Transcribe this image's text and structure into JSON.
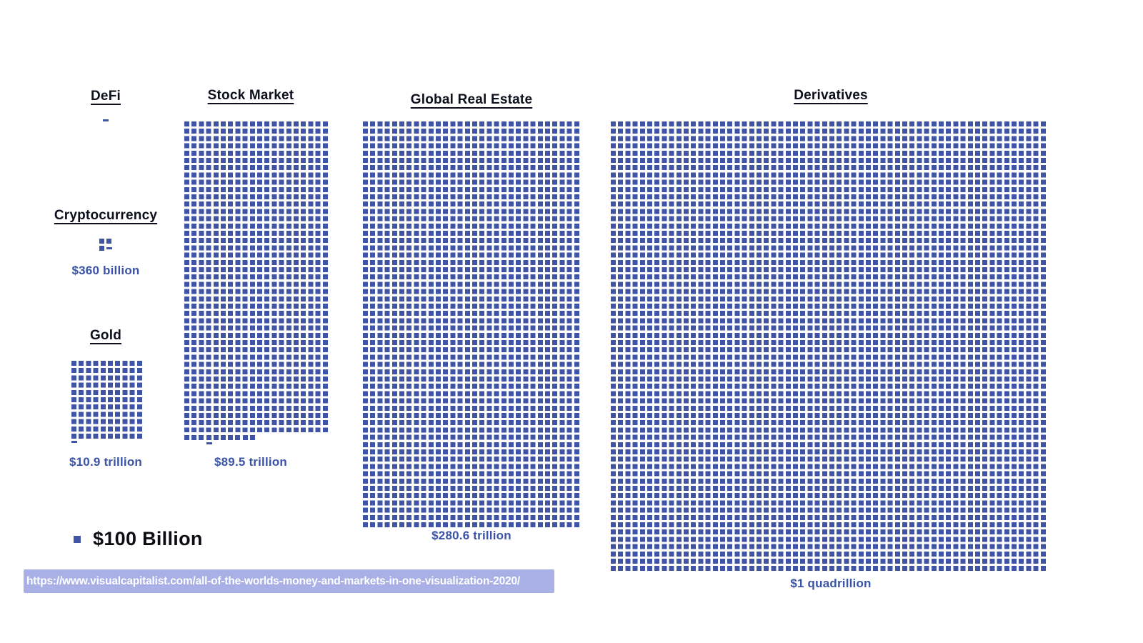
{
  "legend": {
    "label": "$100 Billion",
    "swatch_color": "#4054a6"
  },
  "source": {
    "url": "https://www.visualcapitalist.com/all-of-the-worlds-money-and-markets-in-one-visualization-2020/"
  },
  "colors": {
    "square": "#4054a6",
    "value_text": "#3b53a6",
    "title_text": "#0d0f1c",
    "url_bar_background": "#a9b0e6",
    "url_text": "#ffffff",
    "page_background": "#ffffff"
  },
  "chart_data": {
    "type": "pictogram",
    "unit_per_square_usd_billion": 100,
    "unit_label": "$100 Billion",
    "items": [
      {
        "name": "DeFi",
        "value_label": "",
        "grid_cols": 0,
        "grid_rows": 0,
        "remainder": 0,
        "has_partial": true,
        "partial_placement": "newline",
        "partial_offset_cols": 0
      },
      {
        "name": "Cryptocurrency",
        "value_label": "$360 billion",
        "value_usd_billion": 360,
        "grid_cols": 2,
        "grid_rows": 1,
        "remainder": 1,
        "has_partial": true,
        "partial_placement": "inline",
        "partial_offset_cols": 0
      },
      {
        "name": "Gold",
        "value_label": "$10.9 trillion",
        "value_usd_billion": 10900,
        "grid_cols": 10,
        "grid_rows": 11,
        "remainder": 0,
        "has_partial": true,
        "partial_placement": "newline",
        "partial_offset_cols": 0
      },
      {
        "name": "Stock Market",
        "value_label": "$89.5 trillion",
        "value_usd_billion": 89500,
        "grid_cols": 20,
        "grid_rows": 43,
        "remainder": 10,
        "has_partial": true,
        "partial_placement": "newline",
        "partial_offset_cols": 3
      },
      {
        "name": "Global Real Estate",
        "value_label": "$280.6 trillion",
        "value_usd_billion": 280600,
        "grid_cols": 30,
        "grid_rows": 56,
        "remainder": 0,
        "has_partial": false,
        "partial_placement": "none",
        "partial_offset_cols": 0
      },
      {
        "name": "Derivatives",
        "value_label": "$1 quadrillion",
        "value_usd_billion": 1000000,
        "grid_cols": 60,
        "grid_rows": 62,
        "remainder": 0,
        "has_partial": false,
        "partial_placement": "none",
        "partial_offset_cols": 0
      }
    ]
  }
}
